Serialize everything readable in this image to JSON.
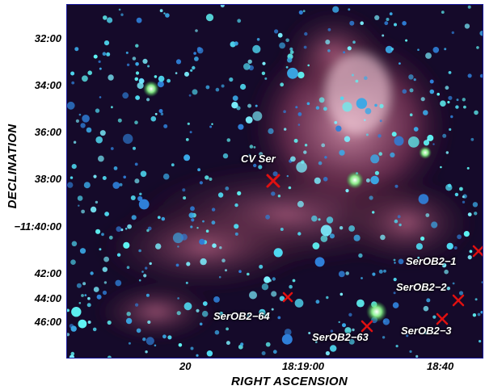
{
  "axes": {
    "ylabel": "DECLINATION",
    "xlabel": "RIGHT ASCENSION",
    "y_ticks": [
      "32:00",
      "34:00",
      "36:00",
      "38:00",
      "−11:40:00",
      "42:00",
      "44:00",
      "46:00"
    ],
    "x_ticks": [
      "20",
      "18:19:00",
      "18:40"
    ]
  },
  "sources": [
    {
      "name": "CV Ser"
    },
    {
      "name": "SerOB2−1"
    },
    {
      "name": "SerOB2−2"
    },
    {
      "name": "SerOB2−3"
    },
    {
      "name": "SerOB2−63"
    },
    {
      "name": "SerOB2−64"
    }
  ],
  "colors": {
    "marker": "#e01010",
    "nebula": "#b04a6a",
    "stars": "#5ff5f5",
    "frame": "#1a1aa0"
  }
}
